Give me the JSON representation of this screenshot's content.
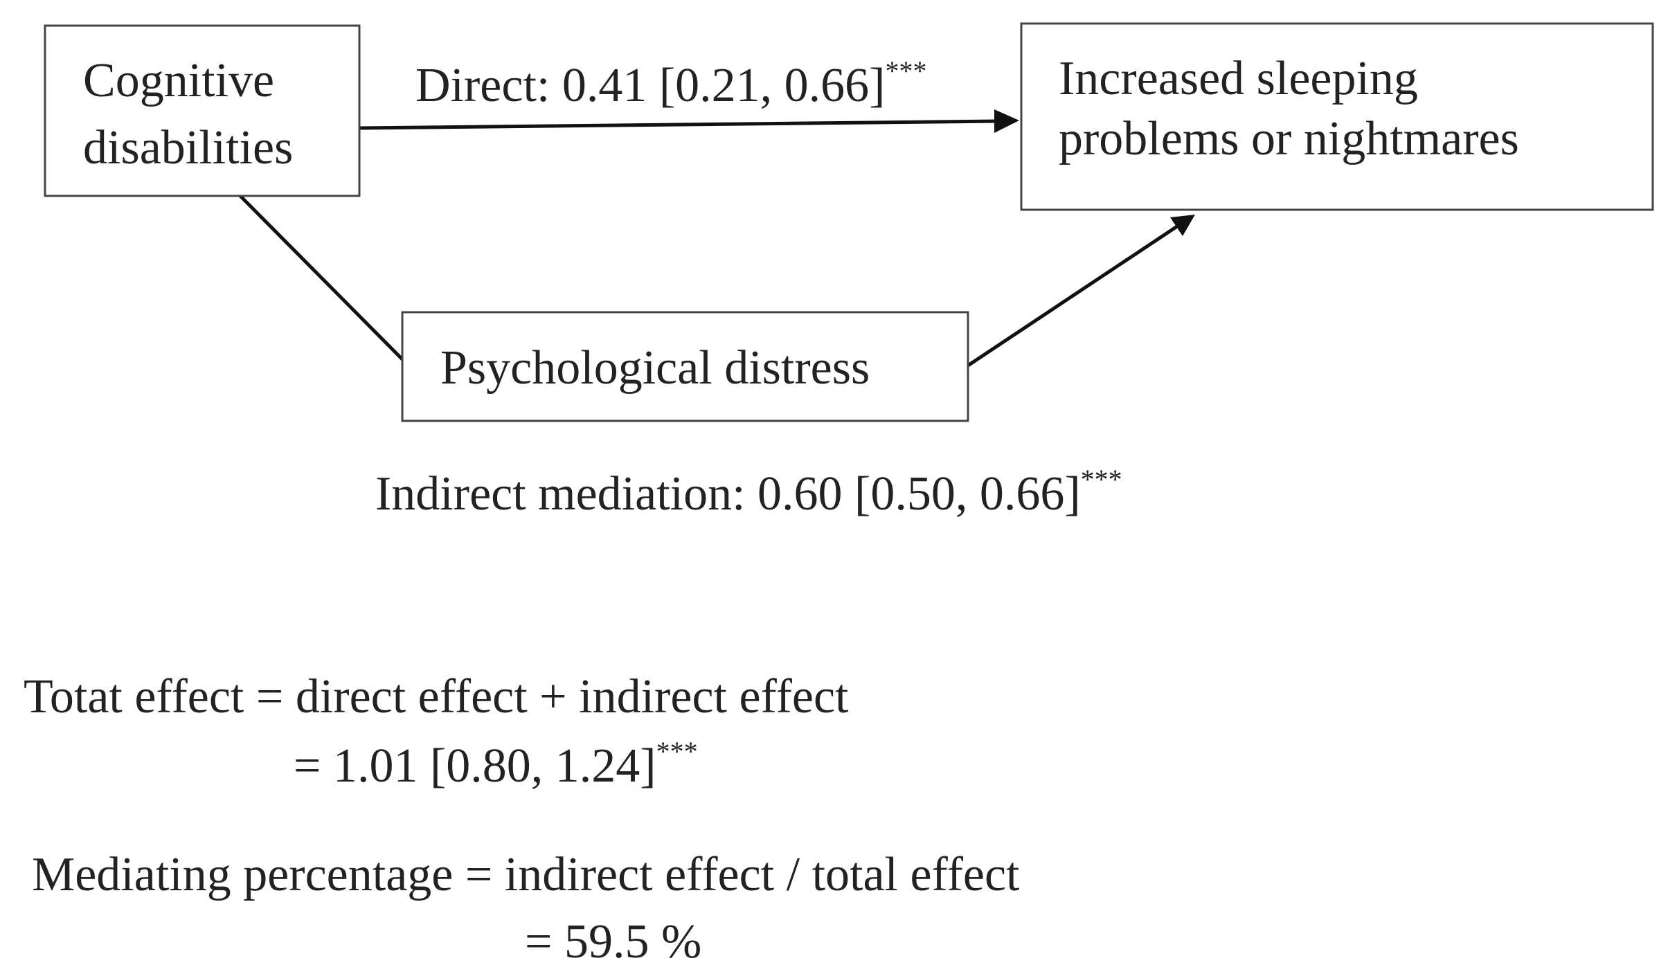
{
  "nodes": [
    {
      "lines": [
        "Cognitive",
        "disabilities"
      ]
    },
    {
      "lines": [
        "Increased sleeping",
        "problems or nightmares"
      ]
    },
    {
      "lines": [
        "Psychological distress"
      ]
    }
  ],
  "edges": {
    "direct": {
      "text": "Direct: 0.41 [0.21, 0.66]",
      "sup": "***"
    },
    "indirect": {
      "text": "Indirect mediation: 0.60 [0.50, 0.66]",
      "sup": "***"
    }
  },
  "formulas": {
    "total": {
      "line1": "Totat effect = direct effect + indirect effect",
      "line2": "=  1.01 [0.80, 1.24]",
      "sup": "***"
    },
    "mediating": {
      "line1": "Mediating percentage = indirect effect / total effect",
      "line2": "= 59.5 %"
    }
  }
}
